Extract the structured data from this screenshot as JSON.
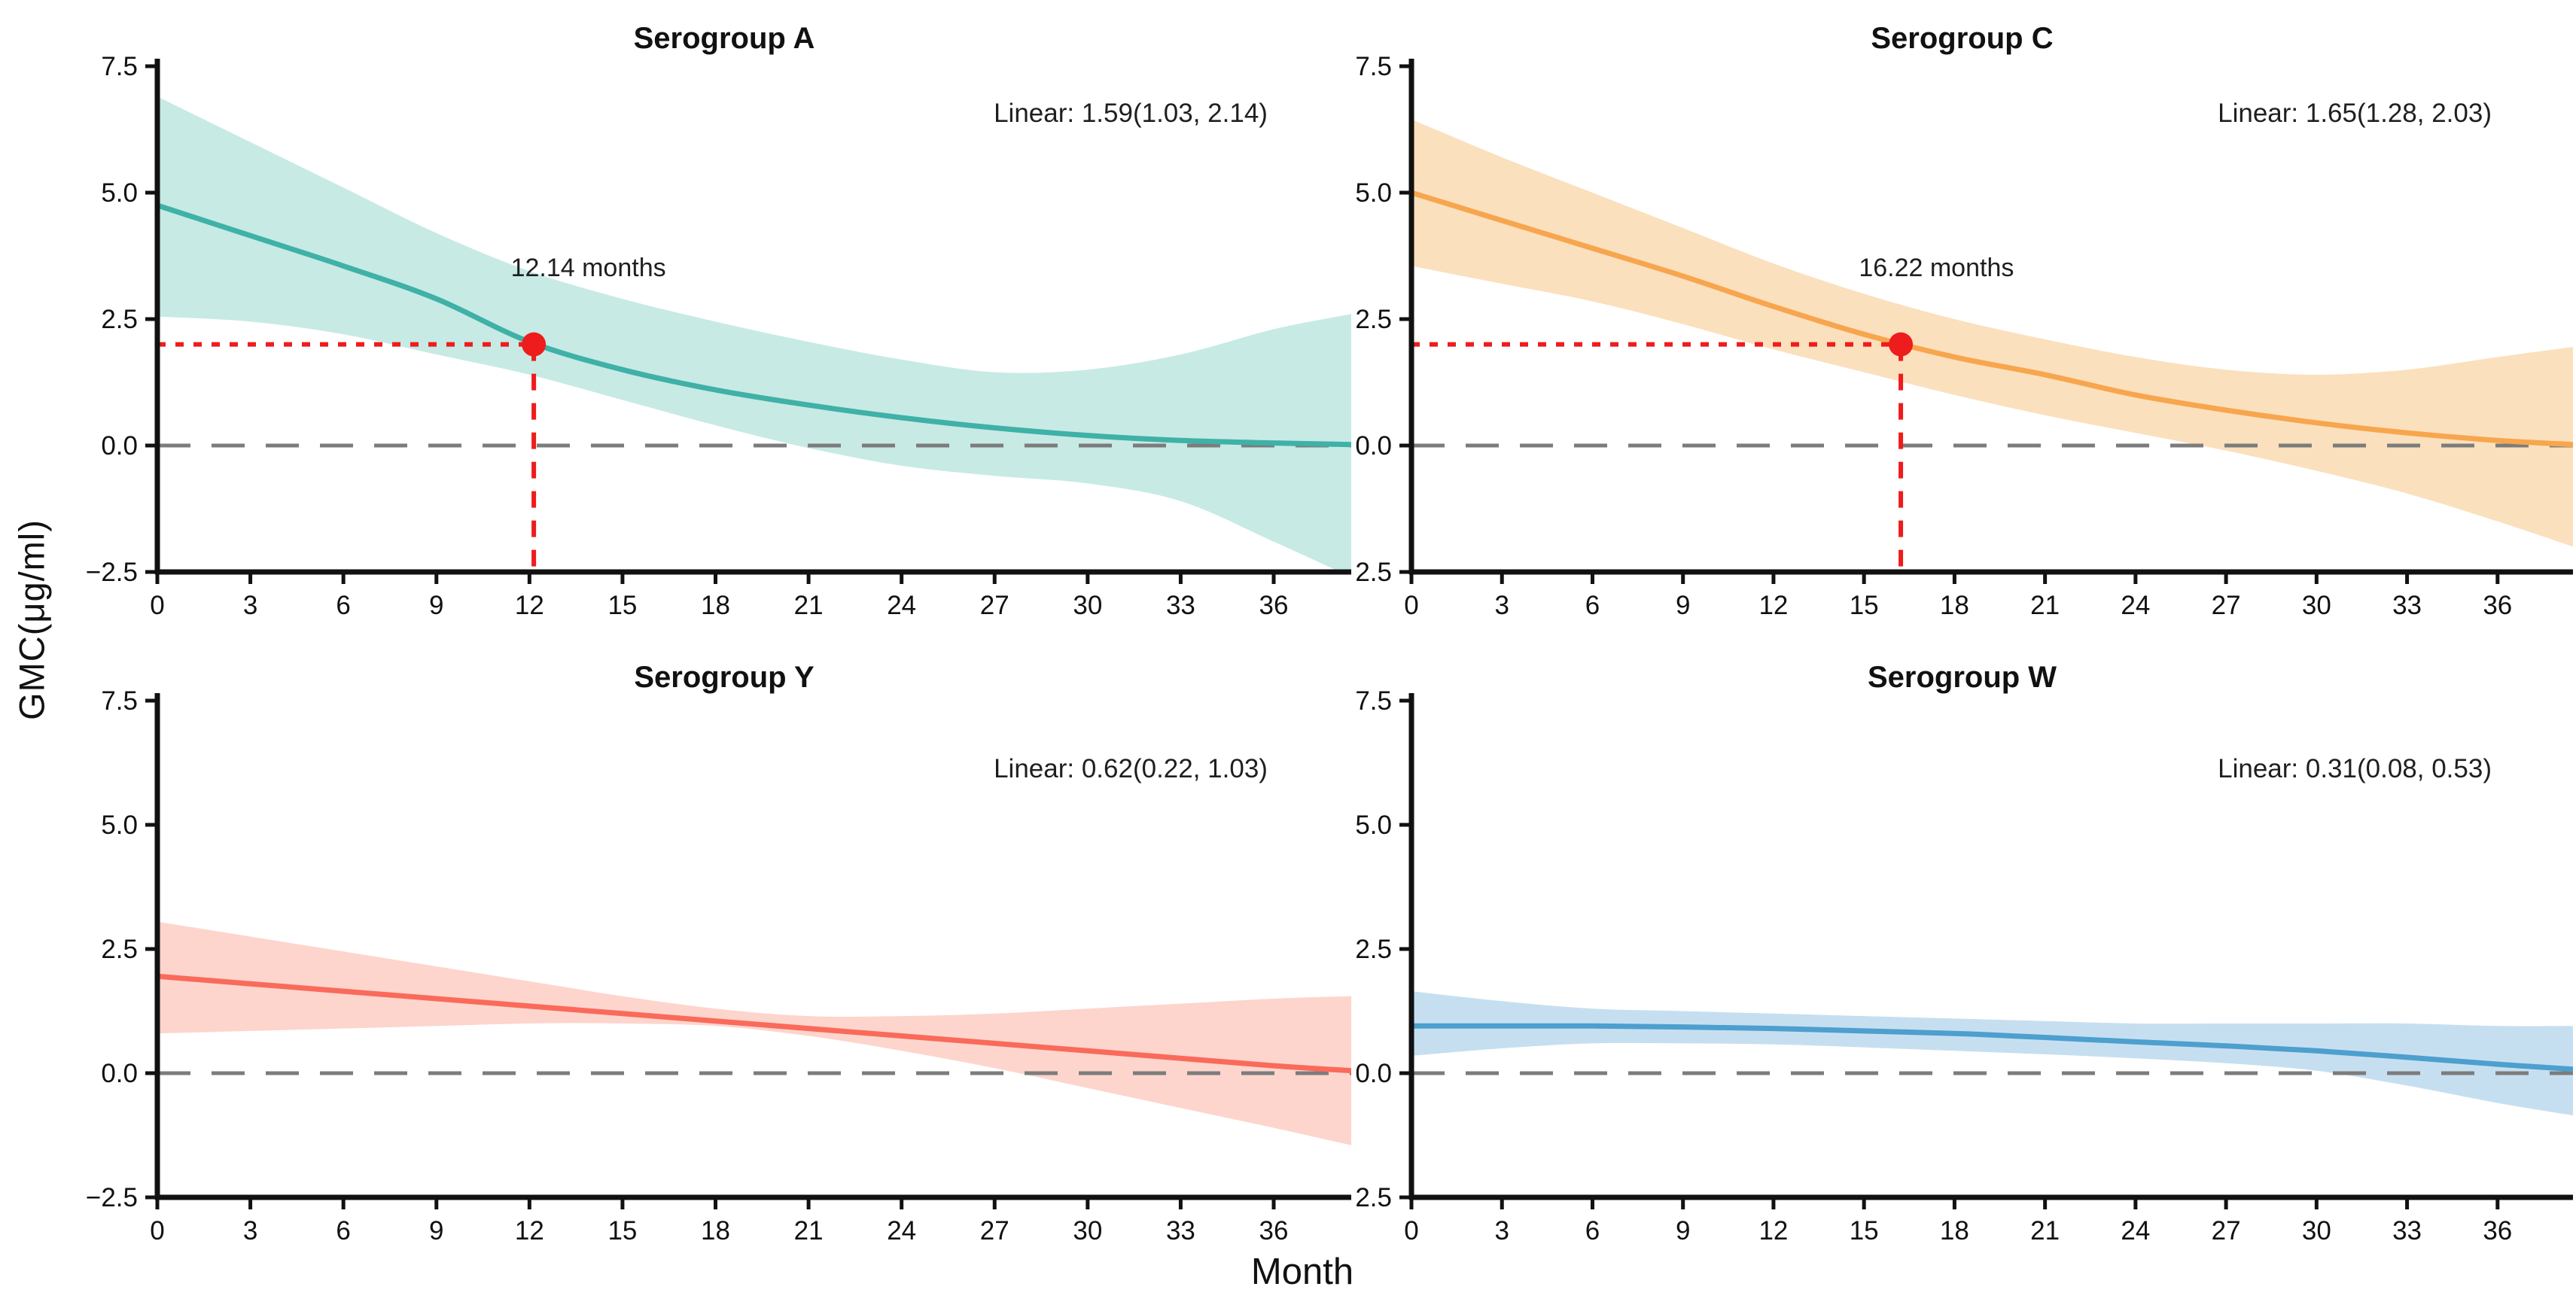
{
  "axes": {
    "ylabel": "GMC(μg/ml)",
    "xlabel": "Month",
    "ylim": [
      -2.5,
      7.5
    ],
    "xlim": [
      0,
      38.5
    ],
    "yticks": [
      "7.5",
      "5.0",
      "2.5",
      "0.0",
      "-2.5"
    ],
    "ytick_values": [
      7.5,
      5.0,
      2.5,
      0.0,
      -2.5
    ],
    "xticks": [
      "0",
      "3",
      "6",
      "9",
      "12",
      "15",
      "18",
      "21",
      "24",
      "27",
      "30",
      "33",
      "36"
    ],
    "xtick_values": [
      0,
      3,
      6,
      9,
      12,
      15,
      18,
      21,
      24,
      27,
      30,
      33,
      36
    ],
    "grid": false,
    "zero_line": {
      "y": 0,
      "color": "#7c7c7c",
      "style": "dashed"
    }
  },
  "style": {
    "axis_color": "#111111",
    "text_color": "#1f1f1f",
    "accent_red": "#ee1c1c"
  },
  "chart_data": [
    {
      "type": "area",
      "title": "Serogroup A",
      "linear_label": "Linear: 1.59(1.03, 2.14)",
      "line_color": "#3fb1a7",
      "band_color": "#c7eae5",
      "annotation": {
        "text": "12.14 months",
        "x": 12.14,
        "y": 2.0,
        "label_x": 13.9,
        "label_y": 3.35
      },
      "x": [
        0,
        3,
        6,
        9,
        12,
        15,
        18,
        21,
        24,
        27,
        30,
        33,
        36,
        38.5
      ],
      "fit": [
        4.75,
        4.15,
        3.55,
        2.9,
        2.05,
        1.5,
        1.1,
        0.8,
        0.55,
        0.35,
        0.2,
        0.1,
        0.05,
        0.02
      ],
      "hi": [
        6.9,
        6.0,
        5.1,
        4.2,
        3.45,
        2.9,
        2.45,
        2.05,
        1.7,
        1.45,
        1.5,
        1.8,
        2.3,
        2.6
      ],
      "lo": [
        2.55,
        2.45,
        2.2,
        1.8,
        1.4,
        0.9,
        0.4,
        -0.05,
        -0.4,
        -0.6,
        -0.75,
        -1.1,
        -1.9,
        -2.6
      ]
    },
    {
      "type": "area",
      "title": "Serogroup C",
      "linear_label": "Linear: 1.65(1.28, 2.03)",
      "line_color": "#f7a64e",
      "band_color": "#fbe0be",
      "annotation": {
        "text": "16.22 months",
        "x": 16.22,
        "y": 2.0,
        "label_x": 17.4,
        "label_y": 3.35
      },
      "x": [
        0,
        3,
        6,
        9,
        12,
        15,
        18,
        21,
        24,
        27,
        30,
        33,
        36,
        38.5
      ],
      "fit": [
        5.0,
        4.45,
        3.9,
        3.35,
        2.75,
        2.2,
        1.75,
        1.4,
        1.0,
        0.7,
        0.45,
        0.25,
        0.1,
        0.02
      ],
      "hi": [
        6.45,
        5.7,
        5.0,
        4.3,
        3.6,
        3.0,
        2.5,
        2.1,
        1.75,
        1.5,
        1.4,
        1.5,
        1.75,
        1.95
      ],
      "lo": [
        3.55,
        3.2,
        2.85,
        2.4,
        1.9,
        1.45,
        1.0,
        0.6,
        0.25,
        -0.1,
        -0.5,
        -0.95,
        -1.5,
        -2.0
      ]
    },
    {
      "type": "area",
      "title": "Serogroup Y",
      "linear_label": "Linear: 0.62(0.22, 1.03)",
      "line_color": "#fa6a5b",
      "band_color": "#fdd5cd",
      "annotation": null,
      "x": [
        0,
        3,
        6,
        9,
        12,
        15,
        18,
        21,
        24,
        27,
        30,
        33,
        36,
        38.5
      ],
      "fit": [
        1.95,
        1.8,
        1.65,
        1.5,
        1.35,
        1.2,
        1.05,
        0.9,
        0.75,
        0.6,
        0.45,
        0.3,
        0.15,
        0.05
      ],
      "hi": [
        3.05,
        2.75,
        2.45,
        2.15,
        1.85,
        1.55,
        1.3,
        1.15,
        1.15,
        1.2,
        1.3,
        1.4,
        1.5,
        1.55
      ],
      "lo": [
        0.8,
        0.85,
        0.9,
        0.95,
        1.0,
        1.0,
        0.95,
        0.75,
        0.45,
        0.1,
        -0.3,
        -0.7,
        -1.1,
        -1.45
      ]
    },
    {
      "type": "area",
      "title": "Serogroup W",
      "linear_label": "Linear: 0.31(0.08, 0.53)",
      "line_color": "#4d9fce",
      "band_color": "#c6dff0",
      "annotation": null,
      "x": [
        0,
        3,
        6,
        9,
        12,
        15,
        18,
        21,
        24,
        27,
        30,
        33,
        36,
        38.5
      ],
      "fit": [
        0.95,
        0.95,
        0.95,
        0.93,
        0.9,
        0.85,
        0.8,
        0.72,
        0.63,
        0.55,
        0.45,
        0.32,
        0.18,
        0.08
      ],
      "hi": [
        1.65,
        1.45,
        1.3,
        1.25,
        1.2,
        1.15,
        1.1,
        1.05,
        1.0,
        1.0,
        1.0,
        1.0,
        0.95,
        0.95
      ],
      "lo": [
        0.35,
        0.5,
        0.6,
        0.6,
        0.58,
        0.52,
        0.45,
        0.38,
        0.3,
        0.2,
        0.05,
        -0.25,
        -0.6,
        -0.85
      ]
    }
  ]
}
